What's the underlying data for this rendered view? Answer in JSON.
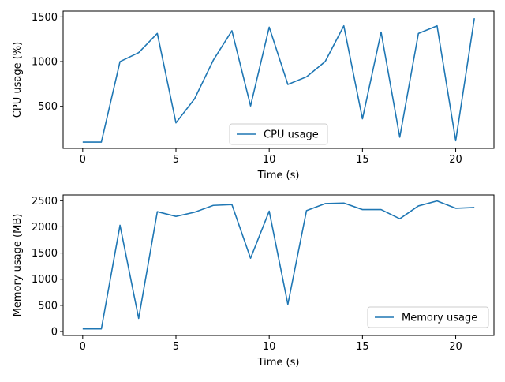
{
  "chart_data": [
    {
      "type": "line",
      "xlabel": "Time (s)",
      "ylabel": "CPU usage (%)",
      "xlim": [
        -1.05,
        22.05
      ],
      "ylim": [
        30,
        1565
      ],
      "xticks": [
        0,
        5,
        10,
        15,
        20
      ],
      "yticks": [
        500,
        1000,
        1500
      ],
      "legend_position": "lower center",
      "series": [
        {
          "name": "CPU usage",
          "color": "#1f77b4",
          "x": [
            0,
            1,
            2,
            3,
            4,
            5,
            6,
            7,
            8,
            9,
            10,
            11,
            12,
            13,
            14,
            15,
            16,
            17,
            18,
            19,
            20,
            21
          ],
          "y": [
            100,
            100,
            1000,
            1100,
            1315,
            315,
            585,
            1015,
            1345,
            505,
            1385,
            745,
            830,
            1000,
            1400,
            360,
            1330,
            155,
            1315,
            1400,
            115,
            1485
          ]
        }
      ]
    },
    {
      "type": "line",
      "xlabel": "Time (s)",
      "ylabel": "Memory usage (MB)",
      "xlim": [
        -1.05,
        22.05
      ],
      "ylim": [
        -75,
        2610
      ],
      "xticks": [
        0,
        5,
        10,
        15,
        20
      ],
      "yticks": [
        0,
        500,
        1000,
        1500,
        2000,
        2500
      ],
      "legend_position": "lower right",
      "series": [
        {
          "name": "Memory usage",
          "color": "#1f77b4",
          "x": [
            0,
            1,
            2,
            3,
            4,
            5,
            6,
            7,
            8,
            9,
            10,
            11,
            12,
            13,
            14,
            15,
            16,
            17,
            18,
            19,
            20,
            21
          ],
          "y": [
            50,
            50,
            2030,
            250,
            2290,
            2200,
            2280,
            2410,
            2425,
            1400,
            2300,
            520,
            2310,
            2445,
            2455,
            2330,
            2330,
            2155,
            2400,
            2495,
            2355,
            2370
          ]
        }
      ]
    }
  ]
}
